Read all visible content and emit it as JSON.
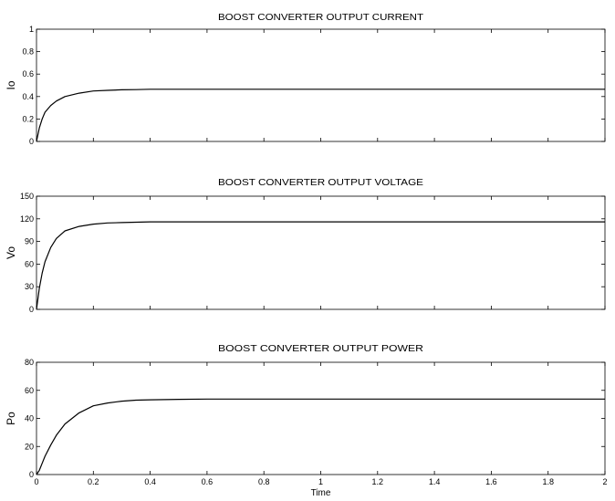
{
  "chart_data": [
    {
      "type": "line",
      "title": "BOOST CONVERTER OUTPUT CURRENT",
      "ylabel": "Io",
      "xlabel": "",
      "xlim": [
        0,
        2
      ],
      "ylim": [
        0,
        1
      ],
      "yticks": [
        0,
        0.2,
        0.4,
        0.6,
        0.8,
        1
      ],
      "xticks": [
        0,
        0.2,
        0.4,
        0.6,
        0.8,
        1,
        1.2,
        1.4,
        1.6,
        1.8,
        2
      ],
      "grid": false,
      "series": [
        {
          "x": [
            0,
            0.01,
            0.02,
            0.03,
            0.05,
            0.07,
            0.1,
            0.15,
            0.2,
            0.25,
            0.3,
            0.35,
            0.4,
            0.5,
            0.6,
            0.8,
            1.0,
            1.2,
            1.4,
            1.6,
            1.8,
            2.0
          ],
          "values": [
            0,
            0.12,
            0.2,
            0.26,
            0.32,
            0.36,
            0.4,
            0.43,
            0.45,
            0.455,
            0.46,
            0.462,
            0.465,
            0.465,
            0.465,
            0.465,
            0.465,
            0.465,
            0.465,
            0.465,
            0.465,
            0.465
          ]
        }
      ]
    },
    {
      "type": "line",
      "title": "BOOST CONVERTER OUTPUT VOLTAGE",
      "ylabel": "Vo",
      "xlabel": "",
      "xlim": [
        0,
        2
      ],
      "ylim": [
        0,
        150
      ],
      "yticks": [
        0,
        30,
        60,
        90,
        120,
        150
      ],
      "xticks": [
        0,
        0.2,
        0.4,
        0.6,
        0.8,
        1,
        1.2,
        1.4,
        1.6,
        1.8,
        2
      ],
      "grid": false,
      "series": [
        {
          "x": [
            0,
            0.01,
            0.02,
            0.03,
            0.05,
            0.07,
            0.1,
            0.15,
            0.2,
            0.25,
            0.3,
            0.35,
            0.4,
            0.5,
            0.6,
            0.8,
            1.0,
            1.2,
            1.4,
            1.6,
            1.8,
            2.0
          ],
          "values": [
            0,
            28,
            48,
            63,
            82,
            94,
            104,
            110,
            113,
            114.5,
            115,
            115.5,
            116,
            116,
            116,
            116,
            116,
            116,
            116,
            116,
            116,
            116
          ]
        }
      ]
    },
    {
      "type": "line",
      "title": "BOOST CONVERTER OUTPUT POWER",
      "ylabel": "Po",
      "xlabel": "Time",
      "xlim": [
        0,
        2
      ],
      "ylim": [
        0,
        80
      ],
      "yticks": [
        0,
        20,
        40,
        60,
        80
      ],
      "xticks": [
        0,
        0.2,
        0.4,
        0.6,
        0.8,
        1,
        1.2,
        1.4,
        1.6,
        1.8,
        2
      ],
      "grid": false,
      "series": [
        {
          "x": [
            0,
            0.01,
            0.02,
            0.03,
            0.05,
            0.07,
            0.1,
            0.15,
            0.2,
            0.25,
            0.3,
            0.35,
            0.4,
            0.5,
            0.6,
            0.8,
            1.0,
            1.2,
            1.4,
            1.6,
            1.8,
            2.0
          ],
          "values": [
            0,
            3,
            8,
            13,
            21,
            28,
            36,
            44,
            49,
            51,
            52.3,
            53,
            53.3,
            53.6,
            53.8,
            53.8,
            53.8,
            53.8,
            53.8,
            53.8,
            53.8,
            53.8
          ]
        }
      ]
    }
  ]
}
